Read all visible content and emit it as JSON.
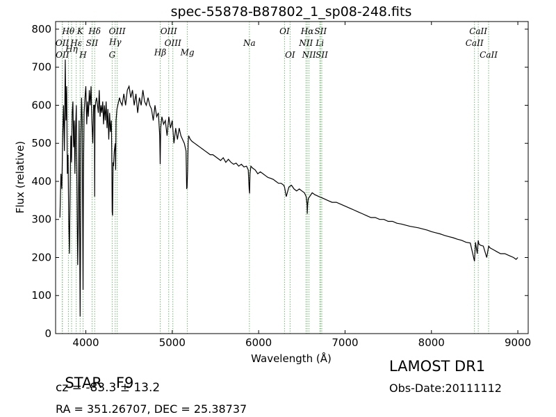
{
  "chart_data": {
    "type": "line",
    "title": "spec-55878-B87802_1_sp08-248.fits",
    "xlabel": "Wavelength (Å)",
    "ylabel": "Flux (relative)",
    "xlim": [
      3650,
      9120
    ],
    "ylim": [
      0,
      820
    ],
    "xticks": [
      4000,
      5000,
      6000,
      7000,
      8000,
      9000
    ],
    "yticks": [
      0,
      100,
      200,
      300,
      400,
      500,
      600,
      700,
      800
    ],
    "grid": false,
    "series": [
      {
        "x": [
          3700,
          3712,
          3722,
          3732,
          3742,
          3752,
          3762,
          3770,
          3778,
          3786,
          3794,
          3802,
          3810,
          3818,
          3826,
          3834,
          3842,
          3850,
          3858,
          3866,
          3874,
          3882,
          3890,
          3898,
          3906,
          3914,
          3922,
          3930,
          3934,
          3938,
          3942,
          3950,
          3958,
          3964,
          3968,
          3972,
          3980,
          3990,
          4000,
          4010,
          4020,
          4030,
          4040,
          4050,
          4060,
          4070,
          4080,
          4090,
          4100,
          4102,
          4106,
          4115,
          4125,
          4135,
          4145,
          4155,
          4165,
          4175,
          4185,
          4195,
          4205,
          4215,
          4225,
          4235,
          4245,
          4255,
          4265,
          4275,
          4285,
          4295,
          4300,
          4305,
          4310,
          4315,
          4320,
          4330,
          4340,
          4345,
          4350,
          4360,
          4370,
          4380,
          4390,
          4400,
          4420,
          4440,
          4460,
          4480,
          4500,
          4520,
          4540,
          4560,
          4580,
          4600,
          4620,
          4640,
          4660,
          4680,
          4700,
          4720,
          4740,
          4760,
          4780,
          4800,
          4820,
          4840,
          4855,
          4861,
          4866,
          4880,
          4900,
          4920,
          4940,
          4960,
          4980,
          5000,
          5020,
          5040,
          5060,
          5080,
          5100,
          5120,
          5140,
          5160,
          5167,
          5172,
          5178,
          5184,
          5190,
          5210,
          5230,
          5260,
          5290,
          5320,
          5350,
          5380,
          5410,
          5440,
          5470,
          5500,
          5530,
          5560,
          5590,
          5620,
          5650,
          5680,
          5710,
          5740,
          5770,
          5800,
          5830,
          5860,
          5880,
          5890,
          5895,
          5900,
          5910,
          5930,
          5960,
          5990,
          6020,
          6050,
          6080,
          6110,
          6140,
          6170,
          6200,
          6230,
          6260,
          6290,
          6300,
          6320,
          6350,
          6380,
          6410,
          6440,
          6470,
          6500,
          6530,
          6550,
          6560,
          6563,
          6568,
          6575,
          6590,
          6620,
          6650,
          6700,
          6750,
          6800,
          6850,
          6900,
          6950,
          7000,
          7050,
          7100,
          7150,
          7200,
          7250,
          7300,
          7350,
          7400,
          7450,
          7500,
          7550,
          7600,
          7650,
          7700,
          7750,
          7800,
          7850,
          7900,
          7950,
          8000,
          8050,
          8100,
          8150,
          8200,
          8250,
          8300,
          8350,
          8400,
          8450,
          8498,
          8510,
          8530,
          8542,
          8550,
          8570,
          8600,
          8640,
          8662,
          8680,
          8720,
          8760,
          8800,
          8850,
          8900,
          8950,
          8980,
          9000
        ],
        "y": [
          305,
          420,
          380,
          520,
          600,
          480,
          720,
          560,
          650,
          420,
          470,
          300,
          210,
          380,
          520,
          450,
          580,
          610,
          490,
          560,
          420,
          540,
          600,
          380,
          180,
          300,
          560,
          200,
          45,
          200,
          520,
          620,
          560,
          300,
          115,
          400,
          580,
          620,
          650,
          550,
          610,
          570,
          640,
          600,
          650,
          560,
          500,
          600,
          600,
          360,
          590,
          610,
          620,
          600,
          580,
          640,
          570,
          600,
          580,
          610,
          550,
          600,
          560,
          610,
          540,
          590,
          510,
          580,
          530,
          560,
          480,
          320,
          310,
          450,
          440,
          480,
          500,
          430,
          560,
          590,
          600,
          610,
          620,
          610,
          600,
          630,
          600,
          640,
          650,
          620,
          640,
          600,
          630,
          580,
          620,
          600,
          640,
          610,
          600,
          620,
          600,
          590,
          560,
          600,
          570,
          580,
          520,
          445,
          540,
          570,
          550,
          560,
          520,
          570,
          540,
          560,
          500,
          540,
          510,
          540,
          520,
          510,
          500,
          480,
          380,
          385,
          430,
          500,
          520,
          510,
          505,
          500,
          495,
          490,
          485,
          480,
          475,
          470,
          470,
          465,
          460,
          455,
          462,
          450,
          458,
          450,
          445,
          448,
          440,
          445,
          438,
          440,
          430,
          380,
          368,
          420,
          440,
          435,
          430,
          420,
          425,
          420,
          415,
          410,
          408,
          405,
          400,
          395,
          395,
          390,
          385,
          360,
          385,
          390,
          380,
          375,
          380,
          375,
          370,
          360,
          340,
          315,
          340,
          355,
          360,
          370,
          365,
          360,
          355,
          350,
          345,
          345,
          340,
          335,
          330,
          325,
          320,
          315,
          310,
          305,
          305,
          300,
          300,
          295,
          295,
          290,
          288,
          285,
          282,
          280,
          278,
          275,
          272,
          268,
          265,
          262,
          258,
          255,
          252,
          248,
          245,
          240,
          238,
          190,
          240,
          210,
          245,
          235,
          232,
          230,
          200,
          230,
          225,
          220,
          215,
          210,
          210,
          205,
          200,
          195,
          200
        ]
      }
    ],
    "lines": [
      {
        "label": "Hθ",
        "x": 3798,
        "row": 0
      },
      {
        "label": "K",
        "x": 3934,
        "row": 0
      },
      {
        "label": "Hδ",
        "x": 4102,
        "row": 0
      },
      {
        "label": "OIII",
        "x": 4363,
        "row": 0
      },
      {
        "label": "OIII",
        "x": 4959,
        "row": 0
      },
      {
        "label": "OI",
        "x": 6300,
        "row": 0
      },
      {
        "label": "Hα",
        "x": 6563,
        "row": 0
      },
      {
        "label": "SII",
        "x": 6717,
        "row": 0
      },
      {
        "label": "CaII",
        "x": 8542,
        "row": 0
      },
      {
        "label": "OII",
        "x": 3727,
        "row": 1
      },
      {
        "label": "Hη",
        "x": 3835,
        "row": 1.5
      },
      {
        "label": "Hε",
        "x": 3889,
        "row": 1
      },
      {
        "label": "SII",
        "x": 4072,
        "row": 1
      },
      {
        "label": "Hγ",
        "x": 4340,
        "row": 0.9
      },
      {
        "label": "OIII",
        "x": 5007,
        "row": 1
      },
      {
        "label": "NII",
        "x": 6548,
        "row": 1
      },
      {
        "label": "Li",
        "x": 6708,
        "row": 1
      },
      {
        "label": "CaII",
        "x": 8498,
        "row": 1
      },
      {
        "label": "OII",
        "x": 3729,
        "row": 2
      },
      {
        "label": "H",
        "x": 3968,
        "row": 2
      },
      {
        "label": "G",
        "x": 4305,
        "row": 2
      },
      {
        "label": "Hβ",
        "x": 4861,
        "row": 1.8
      },
      {
        "label": "Mg",
        "x": 5175,
        "row": 1.8
      },
      {
        "label": "Na",
        "x": 5893,
        "row": 1
      },
      {
        "label": "OI",
        "x": 6364,
        "row": 2
      },
      {
        "label": "NII",
        "x": 6583,
        "row": 2
      },
      {
        "label": "SII",
        "x": 6731,
        "row": 2
      },
      {
        "label": "CaII",
        "x": 8662,
        "row": 2
      }
    ]
  },
  "info": {
    "object_class": "STAR",
    "subclass": "F9",
    "redshift": "cz = -83.3 ± 13.2",
    "coords": "RA = 351.26707, DEC = 25.38737",
    "survey": "LAMOST DR1",
    "obs_date": "Obs-Date:20111112"
  },
  "colors": {
    "spectrum": "#000000",
    "line_markers": "#6abf6a"
  }
}
